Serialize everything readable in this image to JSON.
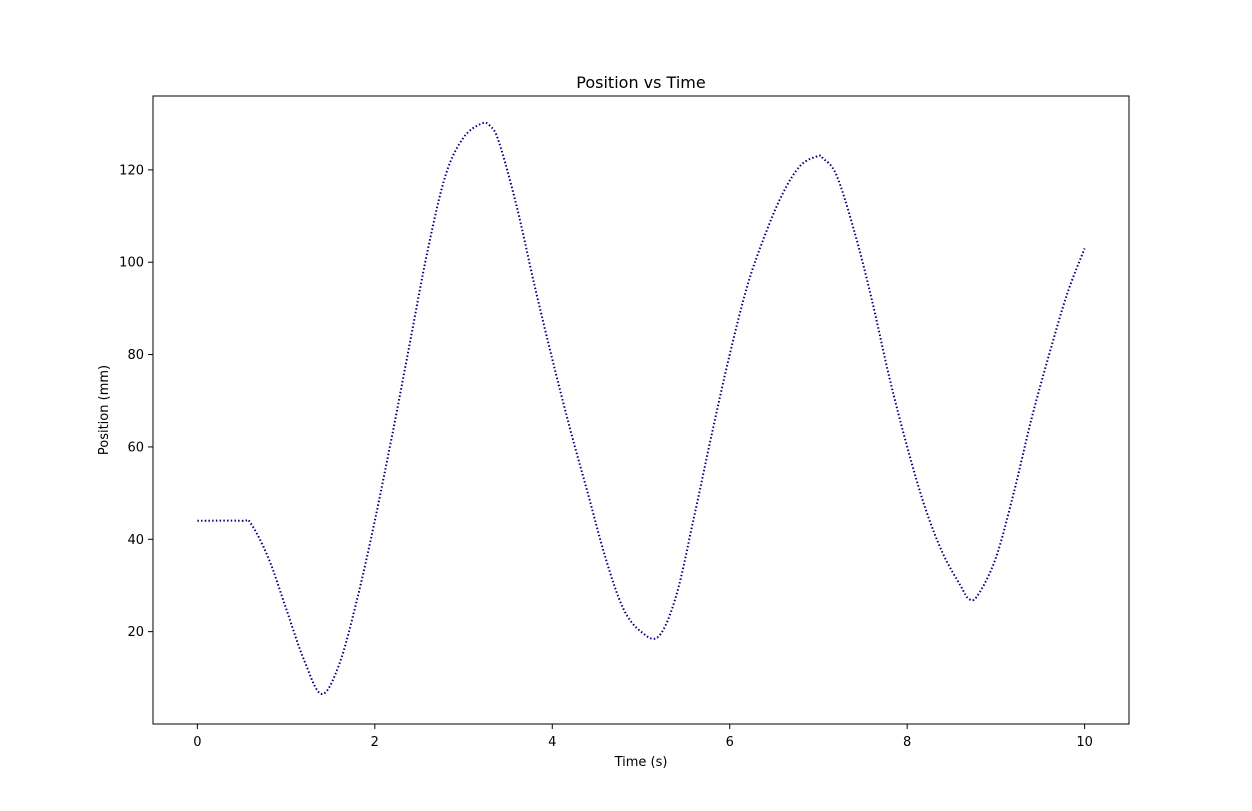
{
  "chart_data": {
    "type": "line",
    "title": "Position vs Time",
    "xlabel": "Time (s)",
    "ylabel": "Position (mm)",
    "xlim": [
      -0.5,
      10.5
    ],
    "ylim": [
      0,
      136
    ],
    "xticks": [
      0,
      2,
      4,
      6,
      8,
      10
    ],
    "yticks": [
      20,
      40,
      60,
      80,
      100,
      120
    ],
    "grid": false,
    "line_style": "dotted",
    "series": [
      {
        "color": "#00007f",
        "x": [
          0,
          0.5,
          0.6,
          0.8,
          1.0,
          1.2,
          1.4,
          1.6,
          1.8,
          2.0,
          2.2,
          2.4,
          2.6,
          2.8,
          3.0,
          3.2,
          3.3,
          3.4,
          3.6,
          3.8,
          4.0,
          4.2,
          4.4,
          4.6,
          4.8,
          5.0,
          5.2,
          5.4,
          5.6,
          5.8,
          6.0,
          6.2,
          6.4,
          6.6,
          6.8,
          7.0,
          7.05,
          7.2,
          7.4,
          7.6,
          7.8,
          8.0,
          8.2,
          8.4,
          8.6,
          8.7,
          8.8,
          9.0,
          9.2,
          9.4,
          9.6,
          9.8,
          10.0
        ],
        "y": [
          44,
          44,
          43.5,
          36,
          25,
          14,
          6.5,
          13,
          27,
          44,
          63,
          83,
          103,
          119,
          127,
          130,
          129.5,
          126,
          112,
          95,
          79,
          64,
          50,
          36,
          25,
          20,
          19,
          28,
          45,
          63,
          80,
          95,
          106,
          115,
          121,
          123,
          122.5,
          119,
          107,
          92,
          75,
          60,
          47,
          37,
          30,
          27,
          28,
          36,
          50,
          66,
          80,
          93,
          103
        ]
      }
    ]
  }
}
